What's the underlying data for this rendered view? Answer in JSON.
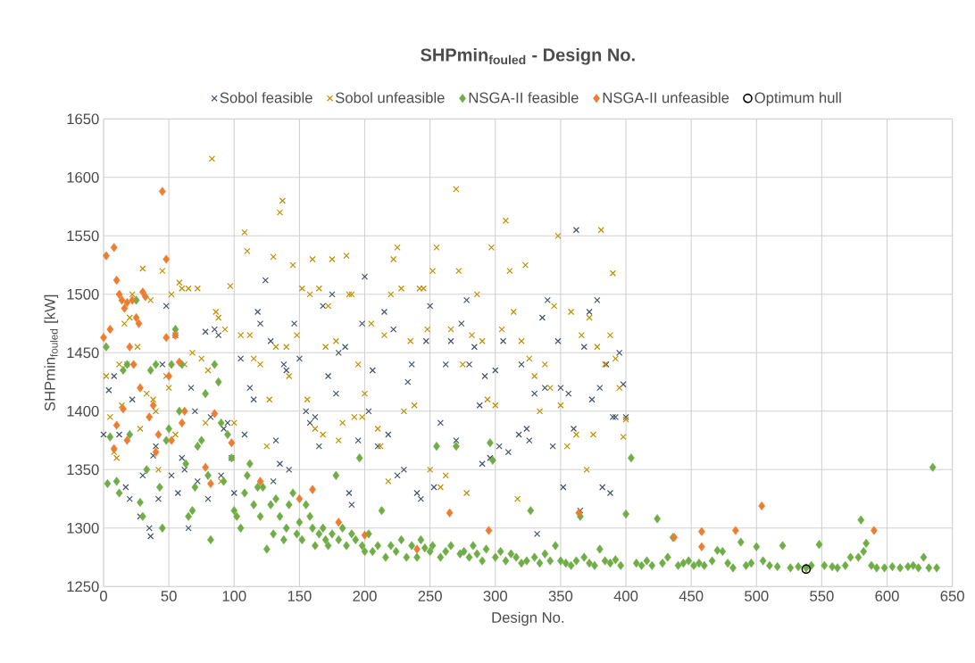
{
  "chart_data": {
    "type": "scatter",
    "title": "SHPmin$_{fouled}$ - Design No.",
    "xlabel": "Design No.",
    "ylabel": "SHPmin$_{fouled}$ [kW]",
    "xlim": [
      0,
      650
    ],
    "ylim": [
      1250,
      1650
    ],
    "xticks": [
      0,
      50,
      100,
      150,
      200,
      250,
      300,
      350,
      400,
      450,
      500,
      550,
      600,
      650
    ],
    "yticks": [
      1250,
      1300,
      1350,
      1400,
      1450,
      1500,
      1550,
      1600,
      1650
    ],
    "grid": true,
    "legend": "top",
    "series": [
      {
        "name": "Sobol feasible",
        "color": "#44546a",
        "marker": "cross",
        "x": [
          0,
          4,
          8,
          12,
          17,
          20,
          22,
          28,
          30,
          35,
          36,
          38,
          40,
          42,
          45,
          48,
          52,
          55,
          57,
          60,
          62,
          65,
          67,
          70,
          72,
          78,
          80,
          82,
          85,
          88,
          90,
          92,
          95,
          98,
          100,
          105,
          108,
          112,
          115,
          118,
          120,
          124,
          128,
          130,
          132,
          135,
          138,
          140,
          142,
          146,
          150,
          155,
          158,
          162,
          165,
          168,
          172,
          175,
          178,
          180,
          185,
          188,
          190,
          195,
          198,
          200,
          203,
          206,
          210,
          215,
          218,
          222,
          225,
          230,
          233,
          236,
          240,
          243,
          247,
          250,
          253,
          258,
          262,
          266,
          270,
          274,
          278,
          280,
          284,
          288,
          290,
          292,
          296,
          300,
          303,
          306,
          310,
          314,
          318,
          320,
          324,
          326,
          330,
          332,
          336,
          338,
          340,
          344,
          348,
          350,
          352,
          356,
          360,
          362,
          365,
          368,
          372,
          374,
          378,
          380,
          382,
          385,
          388,
          390,
          392,
          395,
          398,
          400
        ],
        "values": [
          1380,
          1418,
          1430,
          1380,
          1335,
          1325,
          1410,
          1310,
          1345,
          1300,
          1293,
          1362,
          1370,
          1325,
          1440,
          1490,
          1345,
          1465,
          1330,
          1360,
          1350,
          1300,
          1420,
          1400,
          1340,
          1468,
          1325,
          1395,
          1470,
          1465,
          1345,
          1385,
          1390,
          1360,
          1330,
          1445,
          1380,
          1420,
          1410,
          1485,
          1475,
          1512,
          1460,
          1340,
          1375,
          1355,
          1440,
          1435,
          1350,
          1475,
          1445,
          1400,
          1390,
          1395,
          1370,
          1490,
          1430,
          1500,
          1415,
          1450,
          1455,
          1330,
          1320,
          1375,
          1475,
          1515,
          1400,
          1435,
          1370,
          1485,
          1380,
          1470,
          1345,
          1350,
          1425,
          1440,
          1330,
          1325,
          1460,
          1490,
          1335,
          1390,
          1440,
          1460,
          1375,
          1475,
          1495,
          1440,
          1455,
          1405,
          1355,
          1430,
          1360,
          1435,
          1370,
          1460,
          1365,
          null,
          1380,
          1440,
          1385,
          1375,
          1415,
          1295,
          1480,
          1420,
          1495,
          1370,
          1460,
          1420,
          1335,
          1415,
          1385,
          1555,
          1315,
          1455,
          1485,
          1410,
          1495,
          1420,
          1335,
          1440,
          1330,
          1395,
          1395,
          1450,
          1423,
          1395
        ]
      },
      {
        "name": "Sobol unfeasible",
        "color": "#bf9000",
        "marker": "cross",
        "x": [
          2,
          5,
          8,
          10,
          12,
          14,
          16,
          18,
          20,
          22,
          26,
          28,
          30,
          33,
          36,
          38,
          40,
          42,
          45,
          48,
          50,
          52,
          55,
          58,
          60,
          62,
          65,
          68,
          72,
          75,
          78,
          80,
          83,
          86,
          88,
          90,
          93,
          97,
          100,
          105,
          108,
          110,
          112,
          115,
          120,
          125,
          127,
          130,
          132,
          135,
          137,
          140,
          142,
          145,
          148,
          152,
          156,
          158,
          160,
          162,
          165,
          168,
          170,
          172,
          175,
          178,
          180,
          183,
          186,
          188,
          190,
          192,
          195,
          198,
          200,
          205,
          210,
          212,
          215,
          218,
          220,
          222,
          225,
          228,
          230,
          235,
          238,
          242,
          245,
          248,
          250,
          252,
          255,
          258,
          262,
          266,
          270,
          272,
          275,
          278,
          282,
          286,
          290,
          294,
          297,
          300,
          305,
          308,
          311,
          314,
          317,
          320,
          323,
          326,
          330,
          334,
          338,
          342,
          345,
          348,
          350,
          355,
          358,
          362,
          366,
          370,
          372,
          375,
          378,
          381,
          384,
          388,
          390,
          392,
          395,
          398,
          400
        ],
        "values": [
          1430,
          1395,
          1365,
          1360,
          1440,
          1405,
          1475,
          1440,
          1480,
          1500,
          1455,
          1385,
          1522,
          1415,
          1495,
          1410,
          1400,
          1350,
          1520,
          1430,
          1420,
          1500,
          1380,
          1510,
          1505,
          1440,
          1505,
          1450,
          1505,
          1445,
          1390,
          1435,
          1616,
          1485,
          1480,
          1340,
          1470,
          1507,
          1390,
          1465,
          1553,
          1537,
          1465,
          1445,
          1440,
          1370,
          1410,
          1532,
          1455,
          1570,
          1580,
          1455,
          1430,
          1525,
          1465,
          1505,
          1410,
          1500,
          1530,
          1385,
          1505,
          1380,
          1455,
          1490,
          1530,
          1460,
          1375,
          1390,
          1533,
          1500,
          1500,
          1395,
          1440,
          1395,
          1415,
          1475,
          1385,
          1370,
          1465,
          1340,
          1500,
          1530,
          1540,
          1505,
          1400,
          1460,
          1405,
          1505,
          1505,
          1470,
          1350,
          1520,
          1540,
          1335,
          1345,
          1470,
          1590,
          1520,
          1440,
          1330,
          1465,
          1500,
          1460,
          1410,
          1540,
          1405,
          1470,
          1563,
          1520,
          1485,
          1325,
          1460,
          1525,
          1445,
          1430,
          1400,
          1440,
          1420,
          1490,
          1550,
          1405,
          1370,
          1485,
          1380,
          1465,
          1350,
          1480,
          1380,
          1455,
          1555,
          1440,
          1465,
          1518,
          1445,
          1420,
          1378,
          1393
        ]
      },
      {
        "name": "NSGA-II feasible",
        "color": "#70ad47",
        "marker": "diamond",
        "x": [
          2,
          3,
          5,
          10,
          12,
          15,
          18,
          20,
          25,
          28,
          30,
          33,
          36,
          40,
          43,
          45,
          48,
          50,
          52,
          55,
          58,
          60,
          63,
          65,
          68,
          70,
          72,
          75,
          78,
          80,
          82,
          85,
          88,
          90,
          92,
          95,
          98,
          100,
          102,
          105,
          108,
          110,
          112,
          115,
          118,
          120,
          122,
          125,
          128,
          130,
          132,
          135,
          138,
          140,
          142,
          145,
          148,
          150,
          152,
          155,
          158,
          160,
          162,
          165,
          168,
          170,
          172,
          175,
          178,
          180,
          183,
          186,
          190,
          193,
          196,
          198,
          200,
          203,
          206,
          210,
          213,
          216,
          220,
          224,
          228,
          232,
          236,
          240,
          243,
          246,
          250,
          252,
          255,
          258,
          262,
          266,
          270,
          273,
          276,
          280,
          283,
          286,
          290,
          293,
          296,
          298,
          300,
          304,
          308,
          312,
          316,
          320,
          324,
          327,
          330,
          334,
          338,
          342,
          346,
          350,
          354,
          358,
          362,
          365,
          368,
          372,
          376,
          380,
          384,
          388,
          392,
          396,
          400,
          404,
          408,
          412,
          416,
          420,
          424,
          428,
          432,
          436,
          440,
          444,
          448,
          452,
          456,
          460,
          466,
          470,
          474,
          478,
          482,
          488,
          492,
          496,
          500,
          505,
          510,
          516,
          520,
          526,
          532,
          538,
          542,
          548,
          552,
          558,
          562,
          568,
          572,
          578,
          580,
          582,
          584,
          588,
          592,
          598,
          604,
          610,
          616,
          620,
          624,
          628,
          632,
          635,
          638
        ],
        "values": [
          1455,
          1338,
          1378,
          1340,
          1330,
          1435,
          1440,
          1380,
          1495,
          1322,
          1310,
          1350,
          1435,
          1440,
          1335,
          1300,
          1375,
          1385,
          1440,
          1470,
          1400,
          1440,
          1355,
          1310,
          1315,
          1335,
          1370,
          1375,
          1415,
          1345,
          1290,
          1440,
          1425,
          1390,
          1340,
          1380,
          1360,
          1315,
          1310,
          1300,
          1330,
          1345,
          1355,
          1320,
          1335,
          1310,
          1335,
          1282,
          1320,
          1295,
          1325,
          1310,
          1290,
          1300,
          1320,
          1330,
          1295,
          1305,
          1290,
          1320,
          1310,
          1300,
          1285,
          1295,
          1300,
          1290,
          1285,
          1295,
          1345,
          1290,
          1300,
          1285,
          1295,
          1290,
          1360,
          1285,
          1280,
          1295,
          1280,
          1285,
          1315,
          1275,
          1285,
          1280,
          1290,
          1275,
          1285,
          1275,
          1290,
          1283,
          1280,
          1285,
          1370,
          1275,
          1280,
          1285,
          1370,
          1278,
          1280,
          1275,
          1285,
          1278,
          1272,
          1282,
          1373,
          1358,
          1275,
          1280,
          1272,
          1278,
          1275,
          1270,
          1272,
          1315,
          1275,
          1270,
          1278,
          1272,
          1285,
          1272,
          1270,
          1268,
          1272,
          1310,
          1275,
          1270,
          1268,
          1282,
          1272,
          1270,
          1273,
          1268,
          1312,
          1360,
          1270,
          1268,
          1272,
          1268,
          1308,
          1270,
          1275,
          1292,
          1268,
          1270,
          1272,
          1268,
          1270,
          1268,
          1272,
          1281,
          1280,
          1270,
          1266,
          1288,
          1268,
          1270,
          1284,
          1272,
          1268,
          1267,
          1285,
          1266,
          1267,
          1266,
          1268,
          1286,
          1268,
          1267,
          1266,
          1268,
          1275,
          1275,
          1307,
          1280,
          1287,
          1268,
          1266,
          1266,
          1267,
          1266,
          1267,
          1268,
          1266,
          1275,
          1266,
          1352,
          1266
        ]
      },
      {
        "name": "NSGA-II unfeasible",
        "color": "#ed7d31",
        "marker": "diamond",
        "x": [
          0,
          2,
          5,
          8,
          10,
          12,
          14,
          16,
          18,
          20,
          22,
          25,
          27,
          30,
          32,
          15,
          18,
          35,
          38,
          40,
          42,
          45,
          48,
          50,
          52,
          55,
          58,
          60,
          62,
          8,
          10,
          23,
          28,
          48,
          78,
          82,
          85,
          98,
          120,
          150,
          160,
          180,
          200,
          240,
          265,
          295,
          364,
          437,
          458,
          458,
          484,
          504,
          590
        ],
        "values": [
          1463,
          1533,
          1470,
          1540,
          1512,
          1500,
          1495,
          1488,
          1493,
          1455,
          1495,
          1480,
          1475,
          1502,
          1498,
          1402,
          1375,
          1395,
          1405,
          1365,
          1380,
          1588,
          1530,
          1430,
          1375,
          1465,
          1442,
          1390,
          1400,
          1368,
          1388,
          1440,
          1420,
          1463,
          1352,
          1338,
          1398,
          1373,
          1340,
          1325,
          1333,
          1305,
          1294,
          1282,
          1313,
          1298,
          1313,
          1292,
          1297,
          1284,
          1298,
          1319,
          1298
        ]
      },
      {
        "name": "Optimum hull",
        "color": "#000000",
        "marker": "circle",
        "x": [
          538
        ],
        "values": [
          1265
        ]
      }
    ]
  }
}
